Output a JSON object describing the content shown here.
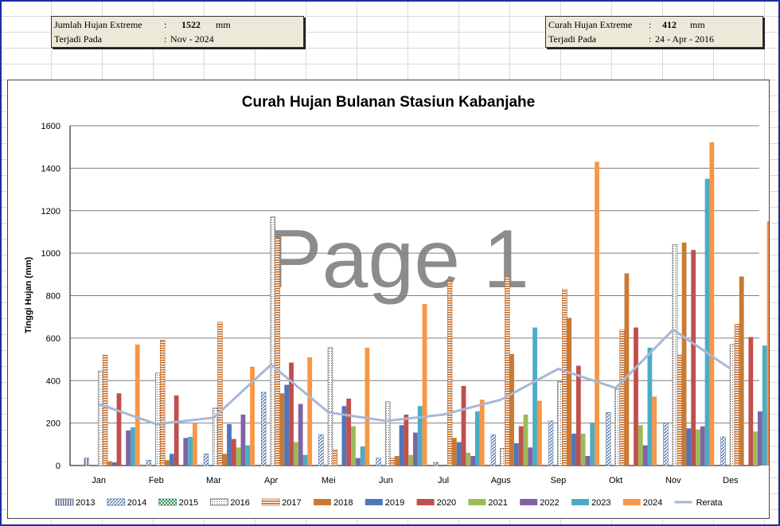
{
  "info_left": {
    "label1": "Jumlah Hujan Extreme",
    "colon1": ":",
    "value1": "1522",
    "unit1": "mm",
    "label2": "Terjadi Pada",
    "colon2": ":",
    "value2": "Nov - 2024"
  },
  "info_right": {
    "label1": "Curah Hujan Extreme",
    "colon1": ":",
    "value1": "412",
    "unit1": "mm",
    "label2": "Terjadi Pada",
    "colon2": ":",
    "value2": "24 - Apr - 2016"
  },
  "chart_data": {
    "type": "bar",
    "title": "Curah Hujan Bulanan Stasiun Kabanjahe",
    "ylabel": "Tinggi Hujan  (mm)",
    "xlabel": "",
    "ylim": [
      0,
      1600
    ],
    "yticks": [
      0,
      200,
      400,
      600,
      800,
      1000,
      1200,
      1400,
      1600
    ],
    "grid": true,
    "legend_position": "bottom",
    "watermark": "Page 1",
    "categories": [
      "Jan",
      "Feb",
      "Mar",
      "Apr",
      "Mei",
      "Jun",
      "Jul",
      "Agus",
      "Sep",
      "Okt",
      "Nov",
      "Des"
    ],
    "series": [
      {
        "name": "2013",
        "color": "#5a6b8c",
        "pattern": "vlines",
        "values": [
          35,
          0,
          0,
          0,
          0,
          0,
          0,
          0,
          0,
          0,
          0,
          0
        ]
      },
      {
        "name": "2014",
        "color": "#4a6fa5",
        "pattern": "diag",
        "values": [
          0,
          25,
          55,
          345,
          145,
          35,
          15,
          145,
          210,
          250,
          200,
          135
        ]
      },
      {
        "name": "2015",
        "color": "#2e8b57",
        "pattern": "checker",
        "values": [
          0,
          0,
          0,
          0,
          0,
          0,
          0,
          0,
          0,
          0,
          0,
          0
        ]
      },
      {
        "name": "2016",
        "color": "#444444",
        "pattern": "dots",
        "values": [
          445,
          435,
          270,
          1170,
          555,
          300,
          0,
          80,
          395,
          360,
          1040,
          570
        ]
      },
      {
        "name": "2017",
        "color": "#c0651e",
        "pattern": "hlines",
        "values": [
          520,
          590,
          675,
          1070,
          75,
          35,
          870,
          890,
          830,
          640,
          520,
          665
        ]
      },
      {
        "name": "2018",
        "color": "#c97a35",
        "values": [
          20,
          25,
          55,
          340,
          0,
          45,
          130,
          525,
          695,
          905,
          1050,
          890
        ]
      },
      {
        "name": "2019",
        "color": "#4f76b8",
        "values": [
          15,
          55,
          195,
          380,
          280,
          190,
          110,
          105,
          150,
          0,
          175,
          0
        ]
      },
      {
        "name": "2020",
        "color": "#c0504d",
        "values": [
          340,
          330,
          125,
          485,
          315,
          240,
          375,
          185,
          470,
          650,
          1015,
          605
        ]
      },
      {
        "name": "2021",
        "color": "#9bbb59",
        "values": [
          0,
          0,
          85,
          110,
          185,
          50,
          60,
          240,
          150,
          190,
          170,
          160
        ]
      },
      {
        "name": "2022",
        "color": "#8064a2",
        "values": [
          165,
          130,
          240,
          290,
          35,
          155,
          45,
          85,
          45,
          95,
          185,
          255
        ]
      },
      {
        "name": "2023",
        "color": "#4bacc6",
        "values": [
          180,
          135,
          95,
          50,
          90,
          280,
          255,
          650,
          200,
          555,
          1350,
          565
        ]
      },
      {
        "name": "2024",
        "color": "#f79646",
        "values": [
          570,
          200,
          465,
          510,
          555,
          760,
          310,
          305,
          1430,
          325,
          1522,
          1150
        ]
      }
    ],
    "average": {
      "name": "Rerata",
      "color": "#a7b8d6",
      "values": [
        290,
        195,
        225,
        475,
        250,
        210,
        240,
        310,
        455,
        365,
        640,
        455
      ]
    }
  }
}
